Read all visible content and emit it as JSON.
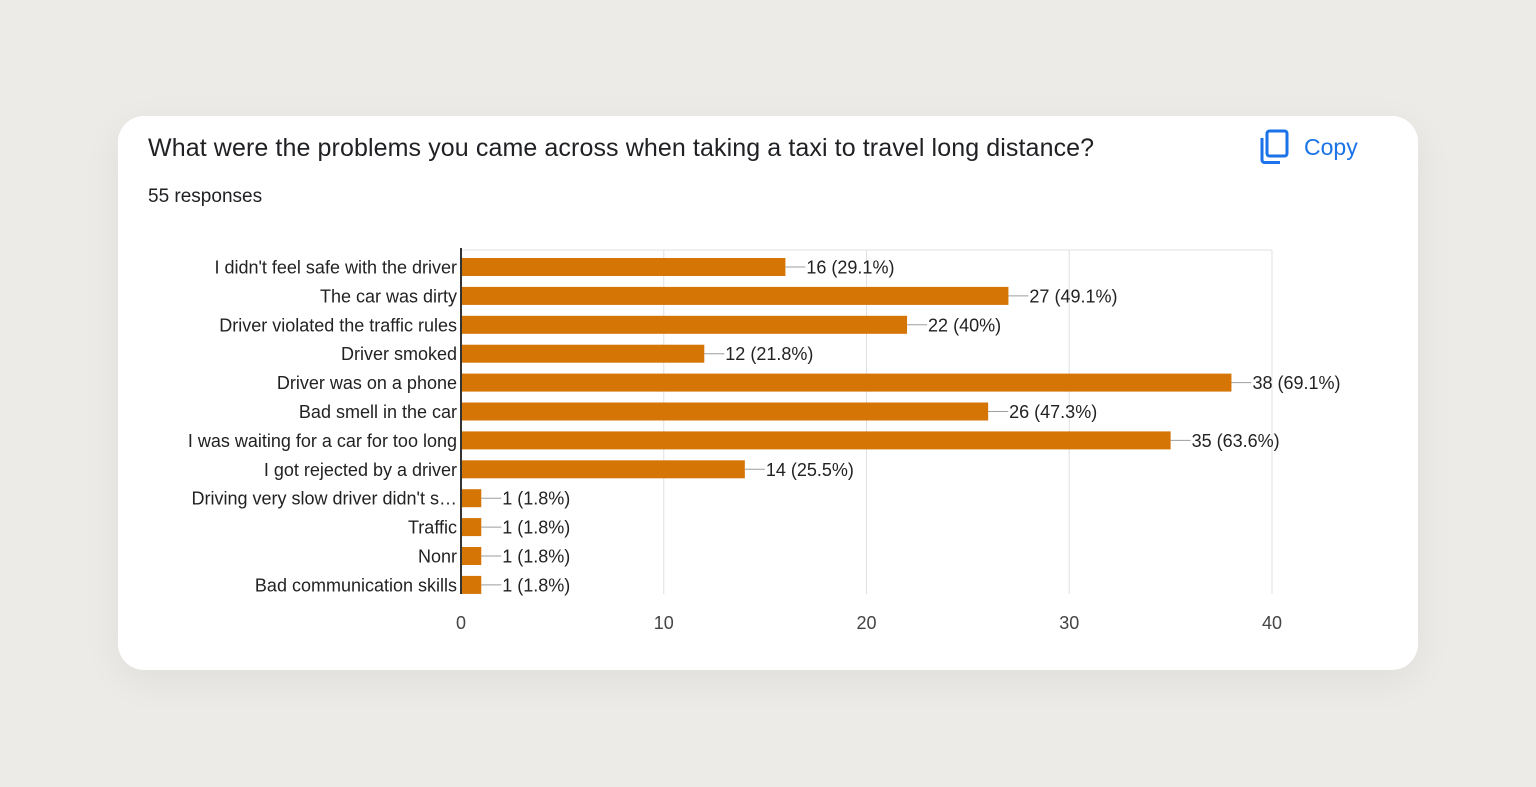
{
  "card": {
    "question": "What were the problems you came across when taking a taxi to travel long distance?",
    "responses": "55 responses",
    "copy_label": "Copy",
    "copy_icon": "copy-icon"
  },
  "colors": {
    "bar": "#d47506",
    "accent": "#1a73e8",
    "text": "#202124"
  },
  "chart_data": {
    "type": "bar",
    "orientation": "horizontal",
    "categories": [
      "I didn't feel safe with the driver",
      "The car was dirty",
      "Driver violated the traffic rules",
      "Driver smoked",
      "Driver was on a phone",
      "Bad smell in the car",
      "I was waiting for a car for too long",
      "I got rejected by a driver",
      "Driving very slow driver didn't s…",
      "Traffic",
      "Nonr",
      "Bad communication skills"
    ],
    "values": [
      16,
      27,
      22,
      12,
      38,
      26,
      35,
      14,
      1,
      1,
      1,
      1
    ],
    "data_labels": [
      "16 (29.1%)",
      "27 (49.1%)",
      "22 (40%)",
      "12 (21.8%)",
      "38 (69.1%)",
      "26 (47.3%)",
      "35 (63.6%)",
      "14 (25.5%)",
      "1 (1.8%)",
      "1 (1.8%)",
      "1 (1.8%)",
      "1 (1.8%)"
    ],
    "xlim": [
      0,
      40
    ],
    "xticks": [
      0,
      10,
      20,
      30,
      40
    ],
    "title": "",
    "xlabel": "",
    "ylabel": "",
    "grid": true,
    "legend": "none"
  }
}
